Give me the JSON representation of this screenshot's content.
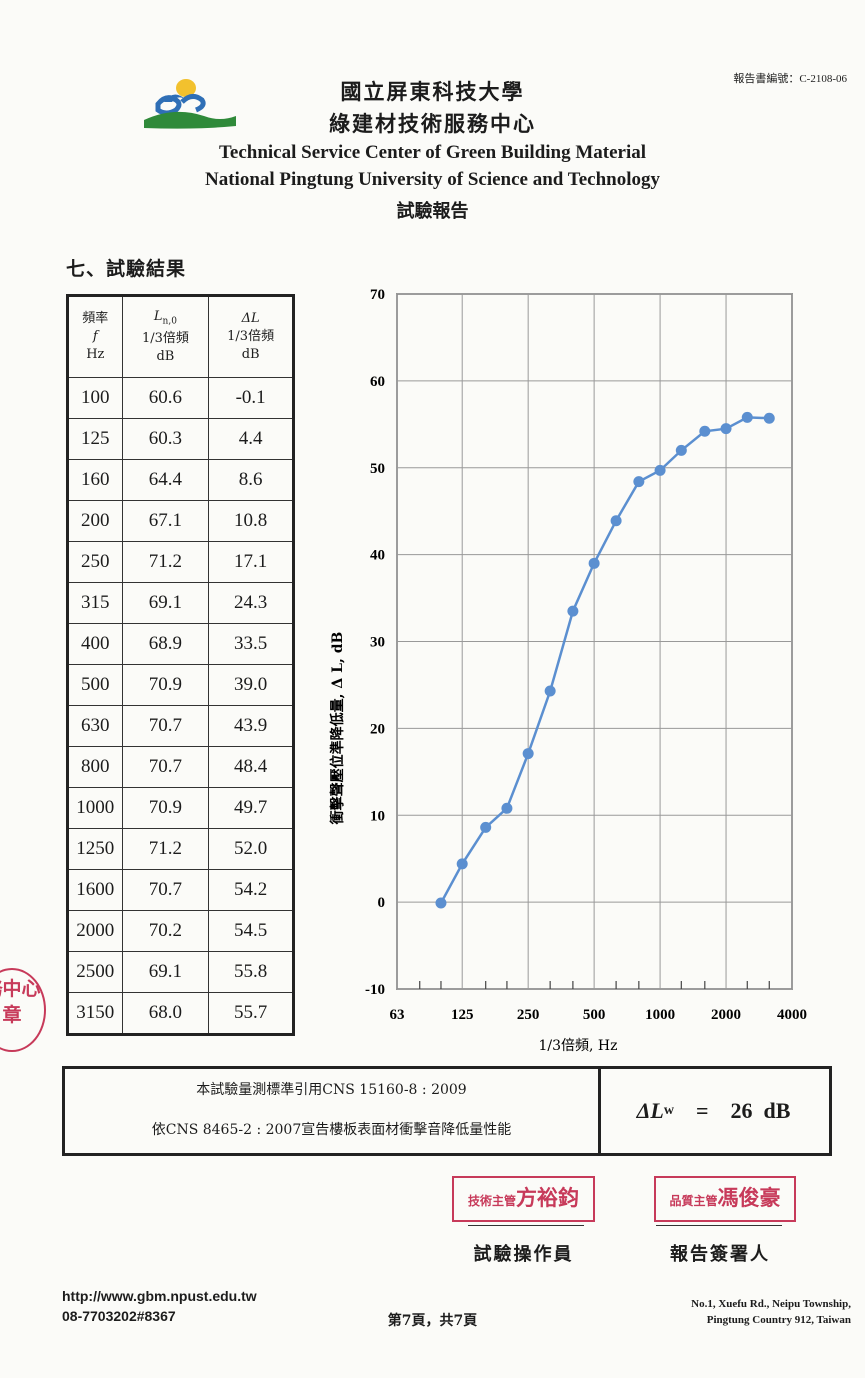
{
  "header": {
    "report_number": "報告書編號：C-2108-06",
    "title_cn_1": "國立屏東科技大學",
    "title_cn_2": "綠建材技術服務中心",
    "title_en_1": "Technical Service Center of Green Building Material",
    "title_en_2": "National Pingtung University of Science and Technology",
    "report_label": "試驗報告"
  },
  "section_heading": "七、試驗結果",
  "table": {
    "col1": {
      "name": "頻率",
      "symbol": "f",
      "unit": "Hz"
    },
    "col2": {
      "symbol": "L",
      "subscript": "n,0",
      "band": "1/3倍頻",
      "unit": "dB"
    },
    "col3": {
      "symbol": "ΔL",
      "band": "1/3倍頻",
      "unit": "dB"
    },
    "rows": [
      [
        "100",
        "60.6",
        "-0.1"
      ],
      [
        "125",
        "60.3",
        "4.4"
      ],
      [
        "160",
        "64.4",
        "8.6"
      ],
      [
        "200",
        "67.1",
        "10.8"
      ],
      [
        "250",
        "71.2",
        "17.1"
      ],
      [
        "315",
        "69.1",
        "24.3"
      ],
      [
        "400",
        "68.9",
        "33.5"
      ],
      [
        "500",
        "70.9",
        "39.0"
      ],
      [
        "630",
        "70.7",
        "43.9"
      ],
      [
        "800",
        "70.7",
        "48.4"
      ],
      [
        "1000",
        "70.9",
        "49.7"
      ],
      [
        "1250",
        "71.2",
        "52.0"
      ],
      [
        "1600",
        "70.7",
        "54.2"
      ],
      [
        "2000",
        "70.2",
        "54.5"
      ],
      [
        "2500",
        "69.1",
        "55.8"
      ],
      [
        "3150",
        "68.0",
        "55.7"
      ]
    ]
  },
  "chart_data": {
    "type": "line",
    "x": [
      100,
      125,
      160,
      200,
      250,
      315,
      400,
      500,
      630,
      800,
      1000,
      1250,
      1600,
      2000,
      2500,
      3150
    ],
    "series": [
      {
        "values": [
          -0.1,
          4.4,
          8.6,
          10.8,
          17.1,
          24.3,
          33.5,
          39.0,
          43.9,
          48.4,
          49.7,
          52.0,
          54.2,
          54.5,
          55.8,
          55.7
        ]
      }
    ],
    "xlabel": "1/3倍頻, Hz",
    "ylabel": "衝擊聲壓位準降低量, Δ L, dB",
    "x_scale": "log",
    "xlim": [
      63,
      4000
    ],
    "ylim": [
      -10,
      70
    ],
    "x_tick_labels": [
      "63",
      "125",
      "250",
      "500",
      "1000",
      "2000",
      "4000"
    ],
    "y_ticks": [
      -10,
      0,
      10,
      20,
      30,
      40,
      50,
      60,
      70
    ],
    "grid": true,
    "line_color": "#5b8fd0"
  },
  "standards": {
    "line1": "本試驗量測標準引用CNS 15160-8 : 2009",
    "line2": "依CNS 8465-2 : 2007宣告樓板表面材衝擊音降低量性能"
  },
  "result": {
    "symbol": "ΔL",
    "subscript": "w",
    "equals": "=",
    "value": "26  dB"
  },
  "signatures": {
    "operator_stamp_role": "技術主管",
    "operator_stamp_name": "方裕鈞",
    "signer_stamp_role": "品質主管",
    "signer_stamp_name": "馮俊豪",
    "operator_label": "試驗操作員",
    "signer_label": "報告簽署人"
  },
  "seal_text": "務中心章",
  "footer": {
    "url": "http://www.gbm.npust.edu.tw",
    "phone": "08-7703202#8367",
    "page": "第7頁，共7頁",
    "address_1": "No.1, Xuefu Rd., Neipu Township,",
    "address_2": "Pingtung Country 912, Taiwan"
  }
}
